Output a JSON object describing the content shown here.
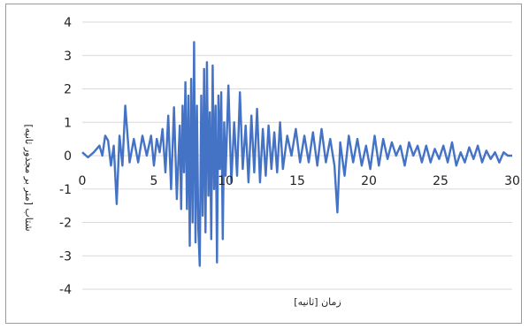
{
  "chart_data": {
    "type": "line",
    "title": "",
    "xlabel": "زمان [ثانیه]",
    "ylabel": "شتاب [متر بر مجذور ثانیه]",
    "xlim": [
      0,
      30
    ],
    "ylim": [
      -4,
      4
    ],
    "xticks": [
      0,
      5,
      10,
      15,
      20,
      25,
      30
    ],
    "yticks": [
      -4,
      -3,
      -2,
      -1,
      0,
      1,
      2,
      3,
      4
    ],
    "grid": {
      "horizontal": true,
      "vertical": false
    },
    "legend": "none",
    "colors": {
      "line": "#4472c4",
      "grid": "#d9d9d9",
      "frame": "#9a9a9a"
    },
    "series": [
      {
        "x": [
          0,
          0.4,
          0.8,
          1.2,
          1.4,
          1.6,
          1.8,
          2.0,
          2.2,
          2.4,
          2.6,
          2.8,
          3.0,
          3.3,
          3.6,
          3.9,
          4.2,
          4.5,
          4.8,
          5.0,
          5.2,
          5.4,
          5.6,
          5.8,
          6.0,
          6.2,
          6.4,
          6.6,
          6.8,
          6.9,
          7.0,
          7.1,
          7.2,
          7.3,
          7.4,
          7.5,
          7.6,
          7.7,
          7.8,
          7.9,
          8.0,
          8.1,
          8.2,
          8.3,
          8.4,
          8.5,
          8.6,
          8.7,
          8.8,
          8.9,
          9.0,
          9.1,
          9.2,
          9.3,
          9.4,
          9.5,
          9.6,
          9.7,
          9.8,
          9.9,
          10.0,
          10.2,
          10.4,
          10.6,
          10.8,
          11.0,
          11.2,
          11.4,
          11.6,
          11.8,
          12.0,
          12.2,
          12.4,
          12.6,
          12.8,
          13.0,
          13.2,
          13.4,
          13.6,
          13.8,
          14.0,
          14.3,
          14.6,
          14.9,
          15.2,
          15.5,
          15.8,
          16.1,
          16.4,
          16.7,
          17.0,
          17.3,
          17.6,
          17.8,
          18.0,
          18.3,
          18.6,
          18.9,
          19.2,
          19.5,
          19.8,
          20.1,
          20.4,
          20.7,
          21.0,
          21.3,
          21.6,
          21.9,
          22.2,
          22.5,
          22.8,
          23.1,
          23.4,
          23.7,
          24.0,
          24.3,
          24.6,
          24.9,
          25.2,
          25.5,
          25.8,
          26.1,
          26.4,
          26.7,
          27.0,
          27.3,
          27.6,
          27.9,
          28.2,
          28.5,
          28.8,
          29.1,
          29.4,
          29.7,
          30.0
        ],
        "y": [
          0.1,
          -0.05,
          0.1,
          0.3,
          0.0,
          0.6,
          0.45,
          -0.3,
          0.3,
          -1.45,
          0.6,
          -0.3,
          1.5,
          -0.2,
          0.5,
          -0.2,
          0.6,
          0.0,
          0.6,
          -0.3,
          0.5,
          0.1,
          0.8,
          -0.5,
          1.2,
          -1.0,
          1.45,
          -1.3,
          0.9,
          -1.6,
          1.5,
          -0.5,
          2.2,
          -1.6,
          1.8,
          -2.7,
          2.3,
          -2.0,
          3.4,
          -2.6,
          1.5,
          -2.2,
          -3.3,
          1.8,
          -1.8,
          2.6,
          -2.3,
          2.8,
          -1.2,
          1.3,
          -2.5,
          2.7,
          -1.0,
          1.5,
          -3.2,
          1.8,
          -0.4,
          1.9,
          -2.5,
          1.0,
          -0.6,
          2.1,
          -0.8,
          1.0,
          -0.6,
          1.9,
          -0.4,
          0.9,
          -0.8,
          1.2,
          -0.5,
          1.4,
          -0.8,
          0.8,
          -0.6,
          0.9,
          -0.4,
          0.7,
          -0.5,
          1.0,
          -0.4,
          0.6,
          0.0,
          0.8,
          -0.2,
          0.6,
          -0.2,
          0.7,
          -0.3,
          0.8,
          -0.2,
          0.5,
          -0.3,
          -1.7,
          0.4,
          -0.6,
          0.6,
          -0.2,
          0.5,
          -0.3,
          0.3,
          -0.4,
          0.6,
          -0.3,
          0.5,
          -0.1,
          0.4,
          0.0,
          0.3,
          -0.3,
          0.4,
          0.0,
          0.3,
          -0.2,
          0.3,
          -0.2,
          0.2,
          -0.1,
          0.3,
          -0.2,
          0.4,
          -0.3,
          0.1,
          -0.2,
          0.25,
          -0.1,
          0.3,
          -0.2,
          0.15,
          -0.1,
          0.1,
          -0.2,
          0.1,
          0.0,
          0.0
        ]
      }
    ]
  }
}
